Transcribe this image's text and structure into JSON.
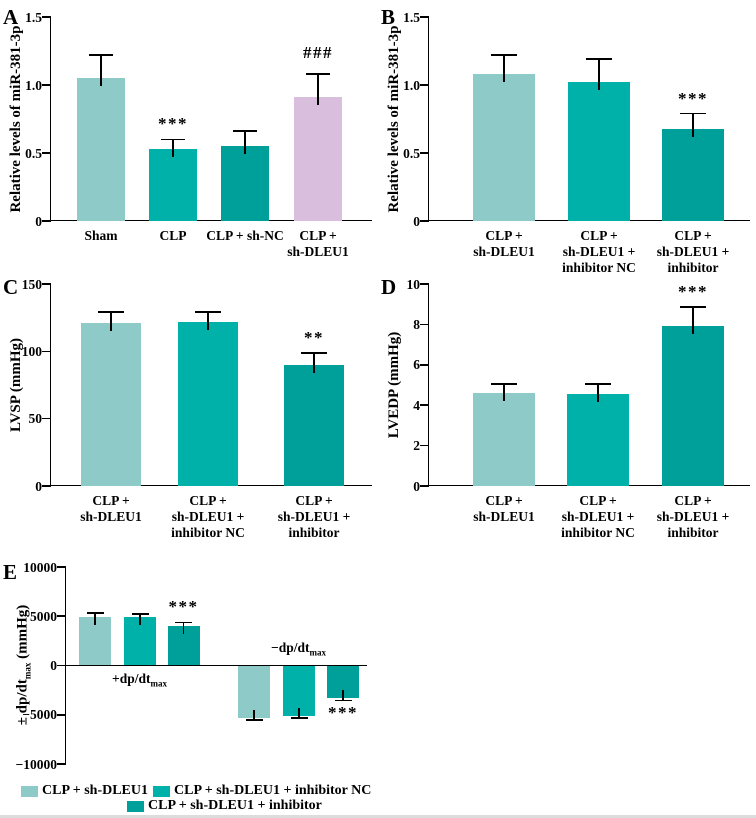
{
  "figure": {
    "background": "#ffffff",
    "palette": {
      "series_light": "#8ecac7",
      "series_mid": "#00b1a9",
      "series_dark": "#00a09a",
      "highlight_pink": "#d9bedd",
      "axis": "#000000"
    },
    "legend": {
      "rows": [
        [
          {
            "color_key": "series_light",
            "label": "CLP + sh-DLEU1"
          },
          {
            "color_key": "series_mid",
            "label": "CLP + sh-DLEU1 + inhibitor NC"
          }
        ],
        [
          {
            "color_key": "series_dark",
            "label": "CLP + sh-DLEU1 + inhibitor"
          }
        ]
      ]
    }
  },
  "chart_data": [
    {
      "id": "A",
      "type": "bar",
      "panel_label": "A",
      "ylabel": "Relative levels of miR-381-3p",
      "ylim": [
        0,
        1.5
      ],
      "grid": false,
      "yticks": [
        {
          "v": 0,
          "label": "0"
        },
        {
          "v": 0.5,
          "label": "0.5"
        },
        {
          "v": 1.0,
          "label": "1.0"
        },
        {
          "v": 1.5,
          "label": "1.5"
        }
      ],
      "categories": [
        "Sham",
        "CLP",
        "CLP + sh-NC",
        "CLP +\nsh-DLEU1"
      ],
      "values": [
        1.05,
        0.53,
        0.55,
        0.91
      ],
      "errors": [
        0.17,
        0.07,
        0.11,
        0.17
      ],
      "annotations": [
        "",
        "***",
        "",
        "###"
      ],
      "bar_color_keys": [
        "series_light",
        "series_mid",
        "series_dark",
        "highlight_pink"
      ]
    },
    {
      "id": "B",
      "type": "bar",
      "panel_label": "B",
      "ylabel": "Relative levels of miR-381-3p",
      "ylim": [
        0,
        1.5
      ],
      "grid": false,
      "yticks": [
        {
          "v": 0,
          "label": "0"
        },
        {
          "v": 0.5,
          "label": "0.5"
        },
        {
          "v": 1.0,
          "label": "1.0"
        },
        {
          "v": 1.5,
          "label": "1.5"
        }
      ],
      "categories": [
        "CLP +\nsh-DLEU1",
        "CLP +\nsh-DLEU1 +\ninhibitor NC",
        "CLP +\nsh-DLEU1 +\ninhibitor"
      ],
      "values": [
        1.08,
        1.02,
        0.68
      ],
      "errors": [
        0.14,
        0.17,
        0.11
      ],
      "annotations": [
        "",
        "",
        "***"
      ],
      "bar_color_keys": [
        "series_light",
        "series_mid",
        "series_dark"
      ]
    },
    {
      "id": "C",
      "type": "bar",
      "panel_label": "C",
      "ylabel": "LVSP (mmHg)",
      "ylim": [
        0,
        150
      ],
      "grid": false,
      "yticks": [
        {
          "v": 0,
          "label": "0"
        },
        {
          "v": 50,
          "label": "50"
        },
        {
          "v": 100,
          "label": "100"
        },
        {
          "v": 150,
          "label": "150"
        }
      ],
      "categories": [
        "CLP +\nsh-DLEU1",
        "CLP +\nsh-DLEU1 +\ninhibitor NC",
        "CLP +\nsh-DLEU1 +\ninhibitor"
      ],
      "values": [
        121,
        122,
        90
      ],
      "errors": [
        8,
        7,
        9
      ],
      "annotations": [
        "",
        "",
        "**"
      ],
      "bar_color_keys": [
        "series_light",
        "series_mid",
        "series_dark"
      ]
    },
    {
      "id": "D",
      "type": "bar",
      "panel_label": "D",
      "ylabel": "LVEDP (mmHg)",
      "ylim": [
        0,
        10
      ],
      "grid": false,
      "yticks": [
        {
          "v": 0,
          "label": "0"
        },
        {
          "v": 2,
          "label": "2"
        },
        {
          "v": 4,
          "label": "4"
        },
        {
          "v": 6,
          "label": "6"
        },
        {
          "v": 8,
          "label": "8"
        },
        {
          "v": 10,
          "label": "10"
        }
      ],
      "categories": [
        "CLP +\nsh-DLEU1",
        "CLP +\nsh-DLEU1 +\ninhibitor NC",
        "CLP +\nsh-DLEU1 +\ninhibitor"
      ],
      "values": [
        4.6,
        4.55,
        7.9
      ],
      "errors": [
        0.45,
        0.5,
        0.95
      ],
      "annotations": [
        "",
        "",
        "***"
      ],
      "bar_color_keys": [
        "series_light",
        "series_mid",
        "series_dark"
      ]
    },
    {
      "id": "E",
      "type": "grouped-bar",
      "panel_label": "E",
      "ylabel": "± dp/dt_{max} (mmHg)",
      "ylim": [
        -10000,
        10000
      ],
      "grid": false,
      "yticks": [
        {
          "v": 10000,
          "label": "10000"
        },
        {
          "v": 5000,
          "label": "5000"
        },
        {
          "v": 0,
          "label": "0"
        },
        {
          "v": -5000,
          "label": "−5000"
        },
        {
          "v": -10000,
          "label": "−10000"
        }
      ],
      "group_labels": [
        "+dp/dt_{max}",
        "−dp/dt_{max}"
      ],
      "series": [
        {
          "name": "CLP + sh-DLEU1",
          "color_key": "series_light",
          "values": [
            4900,
            -5300
          ],
          "errors": [
            420,
            250
          ],
          "annotations": [
            "",
            ""
          ]
        },
        {
          "name": "CLP + sh-DLEU1 + inhibitor NC",
          "color_key": "series_mid",
          "values": [
            4880,
            -5100
          ],
          "errors": [
            380,
            230
          ],
          "annotations": [
            "",
            ""
          ]
        },
        {
          "name": "CLP + sh-DLEU1 + inhibitor",
          "color_key": "series_dark",
          "values": [
            4050,
            -3300
          ],
          "errors": [
            320,
            250
          ],
          "annotations": [
            "***",
            "***"
          ]
        }
      ]
    }
  ]
}
